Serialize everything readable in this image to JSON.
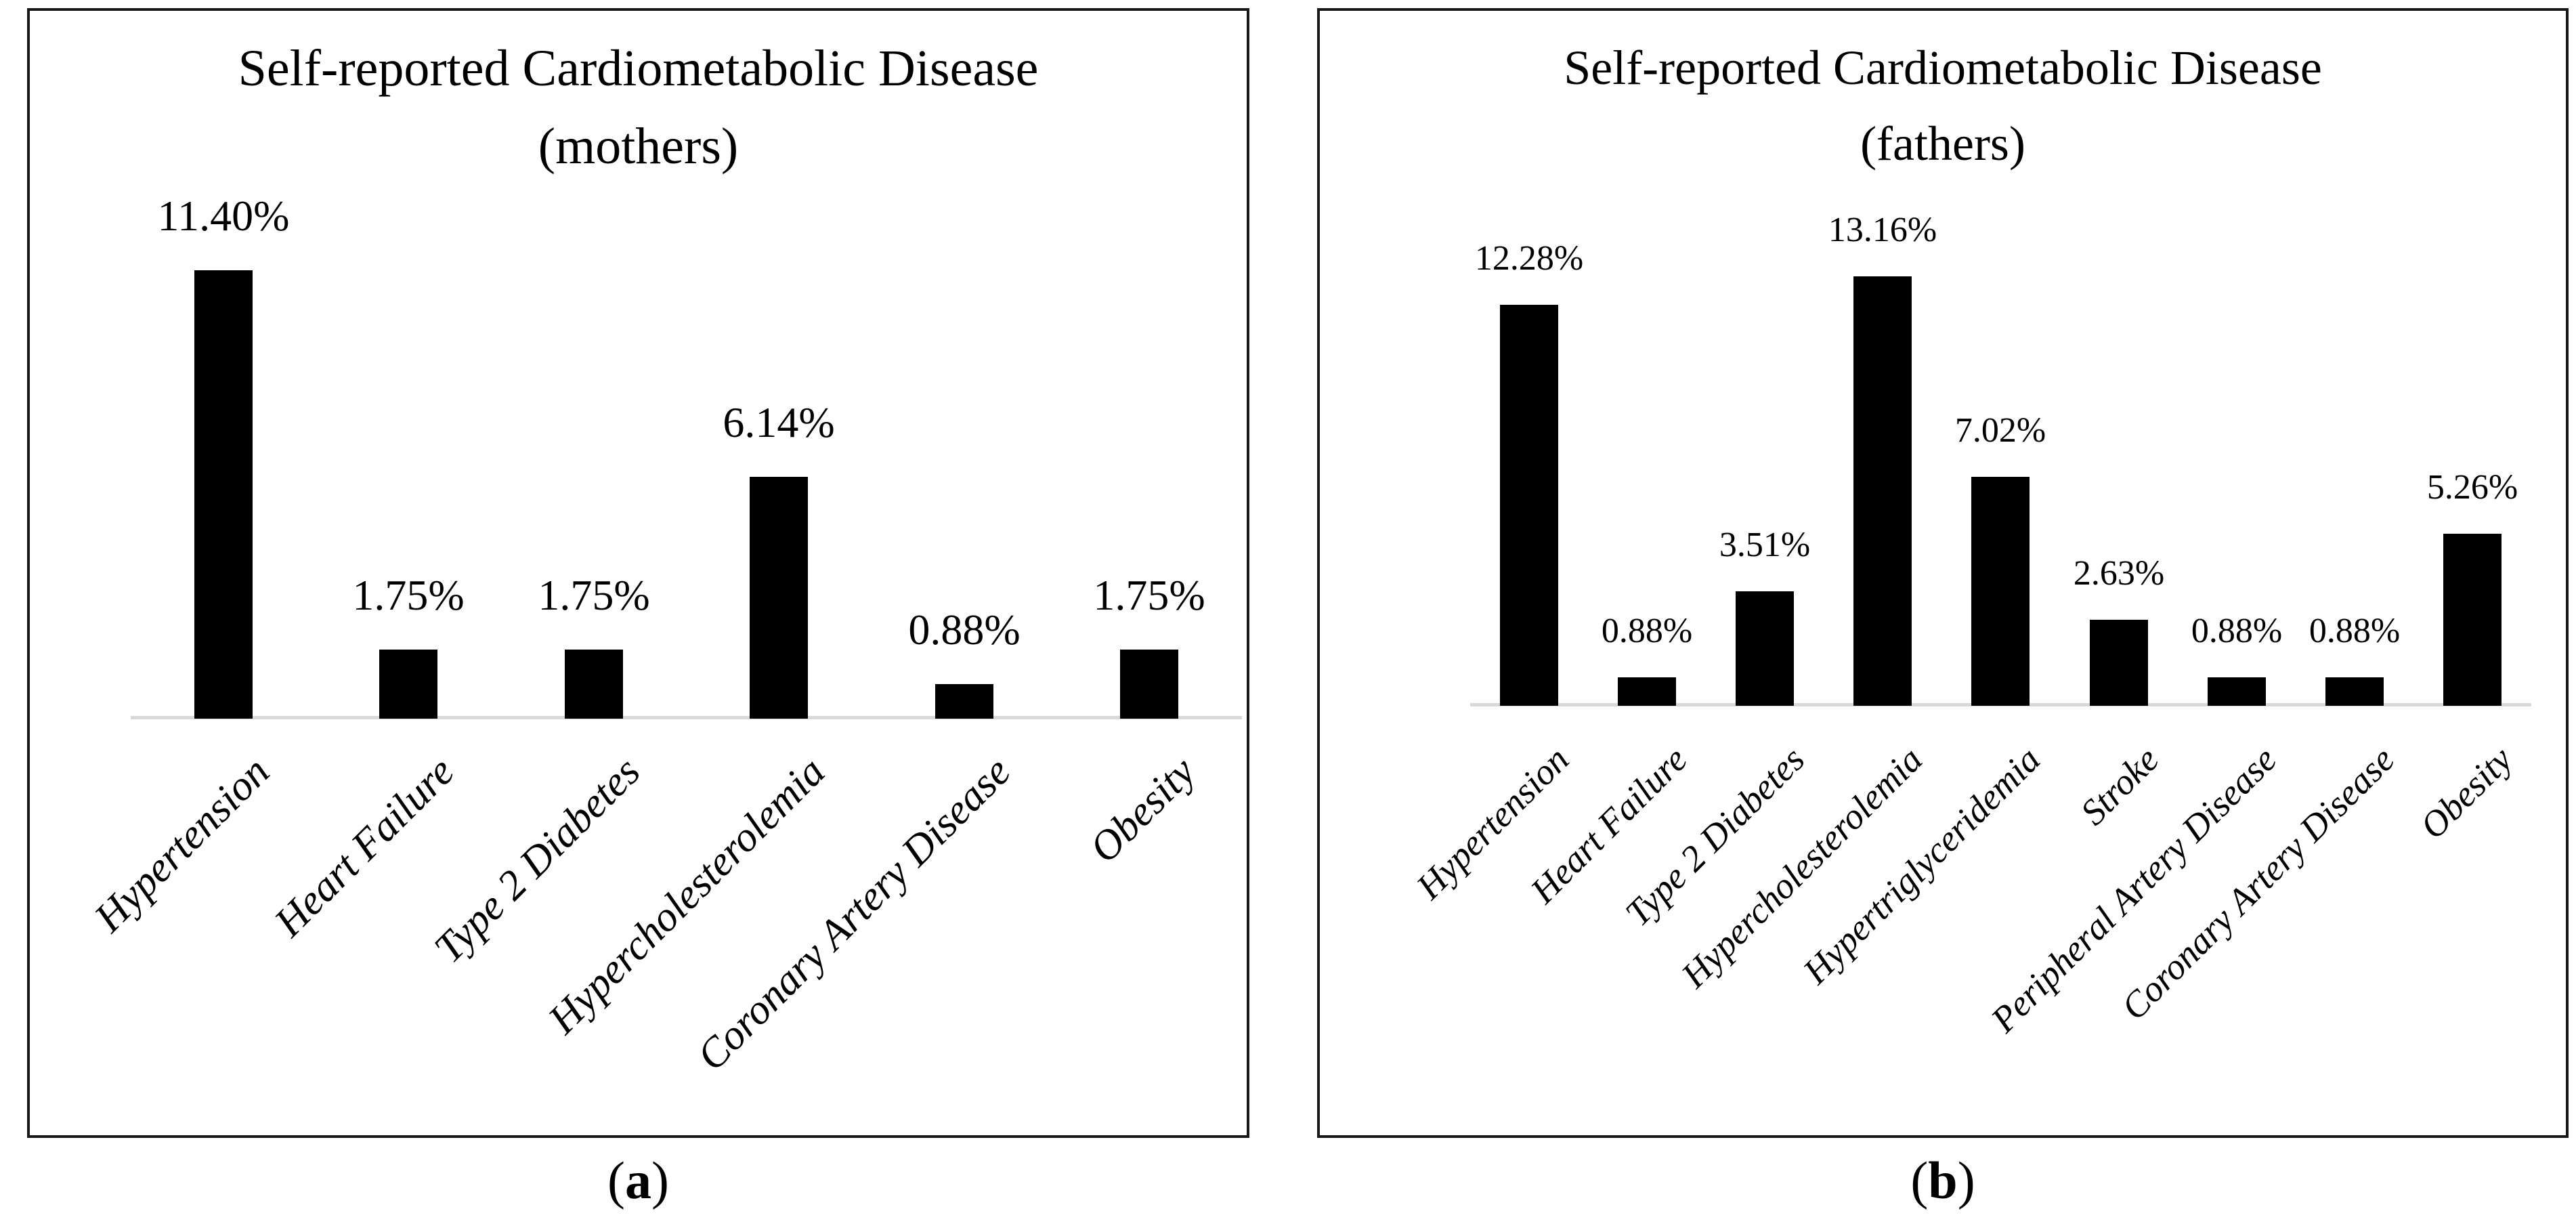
{
  "colors": {
    "bar": "#000000",
    "axis_baseline": "#d9d9d9",
    "panel_border": "#181818",
    "text": "#000000",
    "background": "#ffffff"
  },
  "chart_data": [
    {
      "id": "mothers",
      "type": "bar",
      "title": "Self-reported Cardiometabolic Disease",
      "subtitle": "(mothers)",
      "categories": [
        "Hypertension",
        "Heart Failure",
        "Type 2 Diabetes",
        "Hypercholesterolemia",
        "Coronary Artery Disease",
        "Obesity"
      ],
      "values": [
        11.4,
        1.75,
        1.75,
        6.14,
        0.88,
        1.75
      ],
      "value_labels": [
        "11.40%",
        "1.75%",
        "1.75%",
        "6.14%",
        "0.88%",
        "1.75%"
      ],
      "xlabel": "",
      "ylabel": "",
      "ylim": [
        0,
        12.5
      ],
      "grid": false,
      "legend": "none",
      "bar_color": "#000000",
      "caption": {
        "open": "(",
        "letter": "a",
        "close": ")"
      }
    },
    {
      "id": "fathers",
      "type": "bar",
      "title": "Self-reported Cardiometabolic Disease",
      "subtitle": "(fathers)",
      "categories": [
        "Hypertension",
        "Heart Failure",
        "Type 2 Diabetes",
        "Hypercholesterolemia",
        "Hypertriglyceridemia",
        "Stroke",
        "Peripheral Artery Disease",
        "Coronary Artery Disease",
        "Obesity"
      ],
      "values": [
        12.28,
        0.88,
        3.51,
        13.16,
        7.02,
        2.63,
        0.88,
        0.88,
        5.26
      ],
      "value_labels": [
        "12.28%",
        "0.88%",
        "3.51%",
        "13.16%",
        "7.02%",
        "2.63%",
        "0.88%",
        "0.88%",
        "5.26%"
      ],
      "xlabel": "",
      "ylabel": "",
      "ylim": [
        0,
        14.5
      ],
      "grid": false,
      "legend": "none",
      "bar_color": "#000000",
      "caption": {
        "open": "(",
        "letter": "b",
        "close": ")"
      }
    }
  ]
}
